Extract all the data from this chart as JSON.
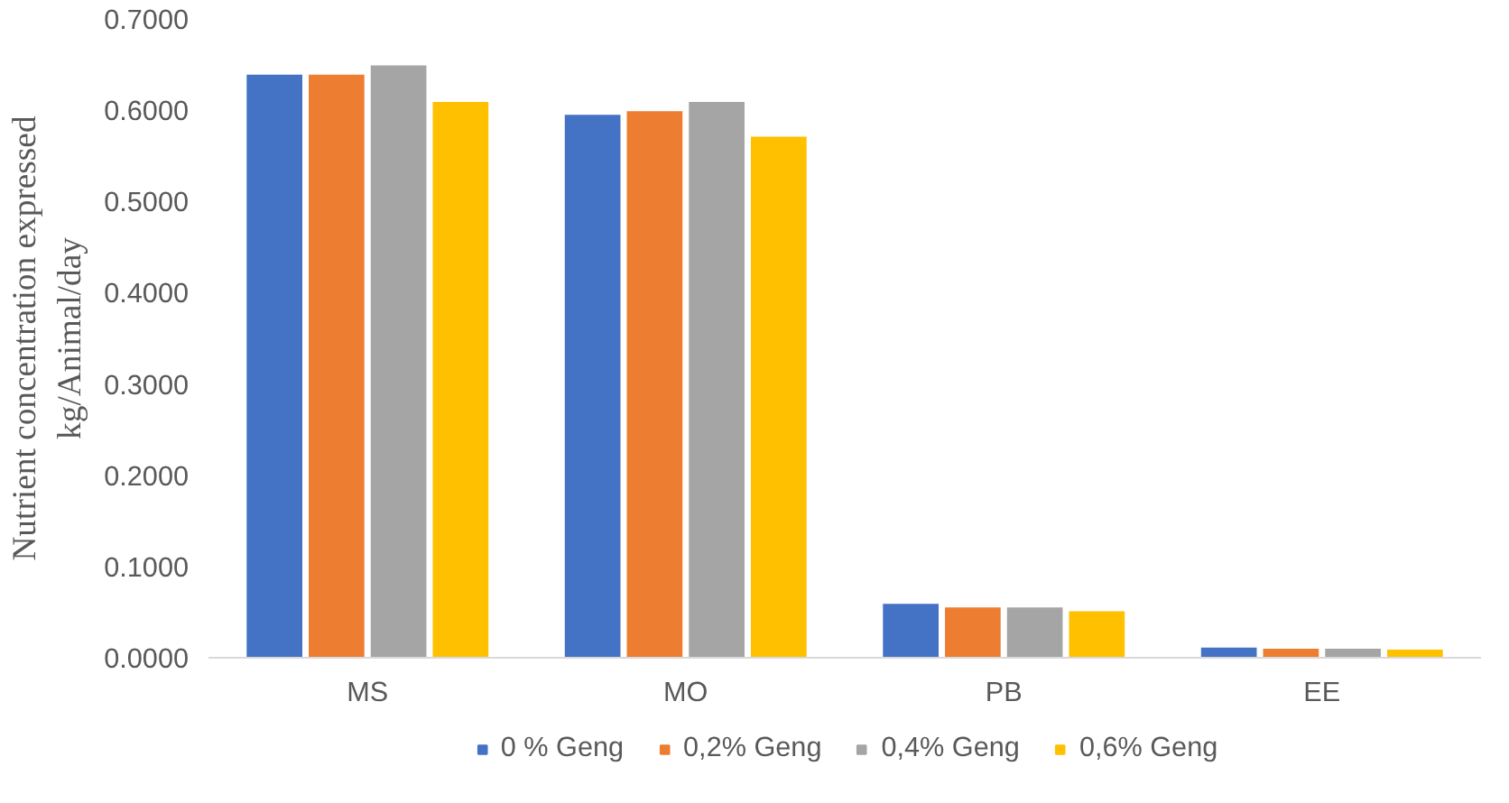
{
  "chart_data": {
    "type": "bar",
    "ylabel": "Nutrient concentration expressed\nkg/Animal/day",
    "categories": [
      "MS",
      "MO",
      "PB",
      "EE"
    ],
    "series": [
      {
        "name": "0 % Geng",
        "color": "#4472c4",
        "values": [
          0.639,
          0.595,
          0.059,
          0.011
        ]
      },
      {
        "name": "0,2% Geng",
        "color": "#ed7d31",
        "values": [
          0.639,
          0.599,
          0.055,
          0.01
        ]
      },
      {
        "name": "0,4% Geng",
        "color": "#a5a5a5",
        "values": [
          0.649,
          0.609,
          0.055,
          0.01
        ]
      },
      {
        "name": "0,6% Geng",
        "color": "#ffc000",
        "values": [
          0.609,
          0.571,
          0.051,
          0.009
        ]
      }
    ],
    "ylim": [
      0,
      0.7
    ],
    "yticks": [
      {
        "value": 0,
        "label": "0.0000"
      },
      {
        "value": 0.1,
        "label": "0.1000"
      },
      {
        "value": 0.2,
        "label": "0.2000"
      },
      {
        "value": 0.3,
        "label": "0.3000"
      },
      {
        "value": 0.4,
        "label": "0.4000"
      },
      {
        "value": 0.5,
        "label": "0.5000"
      },
      {
        "value": 0.6,
        "label": "0.6000"
      },
      {
        "value": 0.7,
        "label": "0.7000"
      }
    ],
    "grid": false,
    "legend": "bottom"
  }
}
